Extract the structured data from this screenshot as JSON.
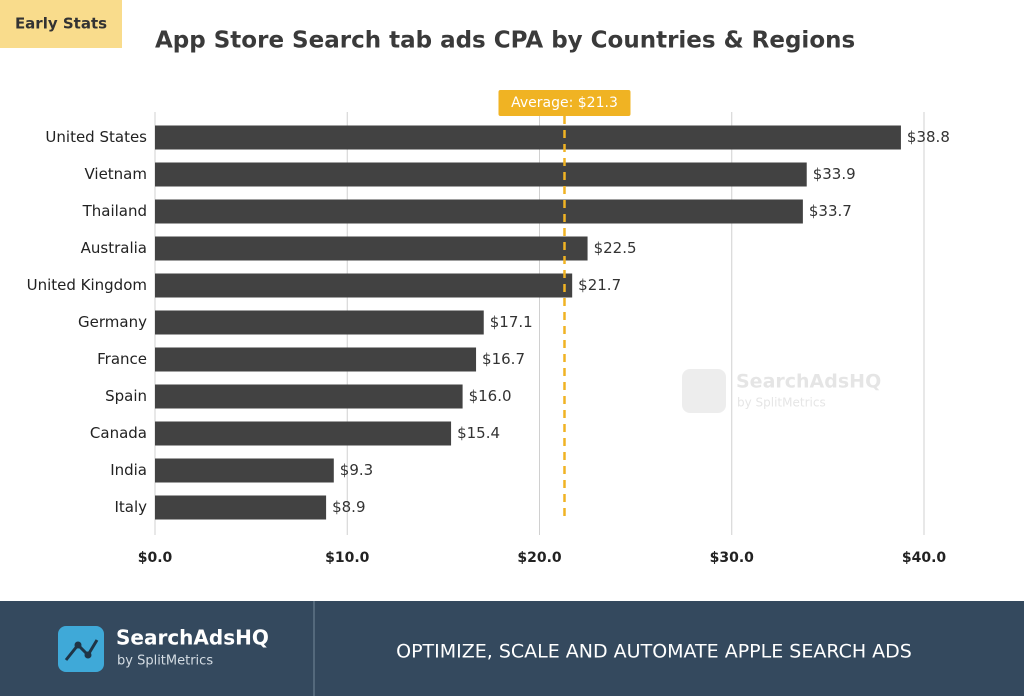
{
  "badge": "Early Stats",
  "chart_data": {
    "type": "bar",
    "orientation": "horizontal",
    "title": "App Store Search tab ads CPA by Countries & Regions",
    "categories": [
      "United States",
      "Vietnam",
      "Thailand",
      "Australia",
      "United Kingdom",
      "Germany",
      "France",
      "Spain",
      "Canada",
      "India",
      "Italy"
    ],
    "values": [
      38.8,
      33.9,
      33.7,
      22.5,
      21.7,
      17.1,
      16.7,
      16.0,
      15.4,
      9.3,
      8.9
    ],
    "value_labels": [
      "$38.8",
      "$33.9",
      "$33.7",
      "$22.5",
      "$21.7",
      "$17.1",
      "$16.7",
      "$16.0",
      "$15.4",
      "$9.3",
      "$8.9"
    ],
    "color": "#424242",
    "xlim": [
      0,
      40
    ],
    "xticks": [
      {
        "value": 0,
        "label": "$0.0"
      },
      {
        "value": 10,
        "label": "$10.0"
      },
      {
        "value": 20,
        "label": "$20.0"
      },
      {
        "value": 30,
        "label": "$30.0"
      },
      {
        "value": 40,
        "label": "$40.0"
      }
    ],
    "grid": true,
    "average": {
      "value": 21.3,
      "label": "Average: $21.3",
      "color": "#f0b323"
    }
  },
  "watermark": {
    "brand": "SearchAdsHQ",
    "byline": "by SplitMetrics"
  },
  "footer": {
    "brand": "SearchAdsHQ",
    "byline": "by SplitMetrics",
    "tagline": "OPTIMIZE, SCALE AND AUTOMATE APPLE SEARCH ADS"
  }
}
